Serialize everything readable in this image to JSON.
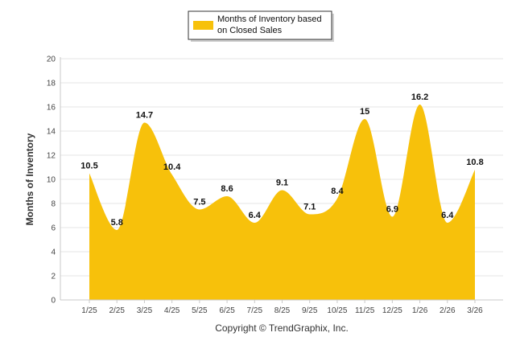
{
  "chart_data": {
    "type": "area",
    "title": "",
    "xlabel": "",
    "ylabel": "Months of Inventory",
    "ylim": [
      0,
      20
    ],
    "yticks": [
      0,
      2,
      4,
      6,
      8,
      10,
      12,
      14,
      16,
      18,
      20
    ],
    "grid": true,
    "legend_position": "top",
    "categories": [
      "1/25",
      "2/25",
      "3/25",
      "4/25",
      "5/25",
      "6/25",
      "7/25",
      "8/25",
      "9/25",
      "10/25",
      "11/25",
      "12/25",
      "1/26",
      "2/26",
      "3/26"
    ],
    "series": [
      {
        "name": "Months of Inventory based on Closed Sales",
        "legend_lines": [
          "Months of Inventory based",
          "on Closed Sales"
        ],
        "values": [
          10.5,
          5.8,
          14.7,
          10.4,
          7.5,
          8.6,
          6.4,
          9.1,
          7.1,
          8.4,
          15,
          6.9,
          16.2,
          6.4,
          10.8
        ],
        "color": "#f7c10b"
      }
    ]
  },
  "footer": {
    "copyright": "Copyright © TrendGraphix, Inc."
  }
}
